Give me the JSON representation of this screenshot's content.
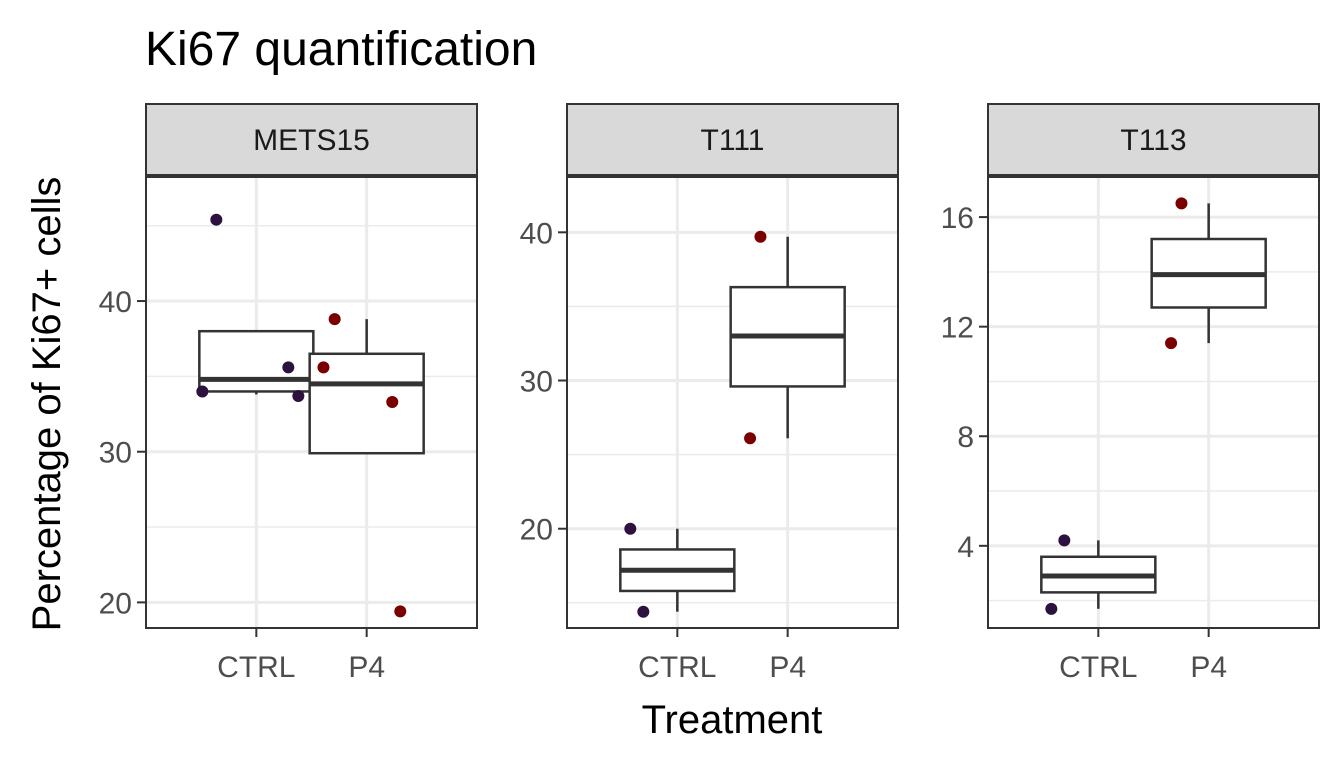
{
  "chart_data": {
    "type": "box",
    "title": "Ki67 quantification",
    "xlabel": "Treatment",
    "ylabel": "Percentage of Ki67+ cells",
    "categories": [
      "CTRL",
      "P4"
    ],
    "facets": [
      {
        "name": "METS15",
        "ylim": [
          18.3,
          48.3
        ],
        "yticks": [
          20,
          30,
          40
        ],
        "boxes": [
          {
            "group": "CTRL",
            "min": 33.8,
            "q1": 34.0,
            "median": 34.8,
            "q3": 38.0,
            "max": 38.0
          },
          {
            "group": "P4",
            "min": 29.9,
            "q1": 29.9,
            "median": 34.5,
            "q3": 36.5,
            "max": 38.8
          }
        ],
        "points": [
          {
            "group": "CTRL",
            "y": 45.4
          },
          {
            "group": "CTRL",
            "y": 34.0
          },
          {
            "group": "CTRL",
            "y": 35.6
          },
          {
            "group": "CTRL",
            "y": 33.7
          },
          {
            "group": "P4",
            "y": 38.8
          },
          {
            "group": "P4",
            "y": 35.6
          },
          {
            "group": "P4",
            "y": 33.3
          },
          {
            "group": "P4",
            "y": 19.4
          }
        ]
      },
      {
        "name": "T111",
        "ylim": [
          13.3,
          43.8
        ],
        "yticks": [
          20,
          30,
          40
        ],
        "boxes": [
          {
            "group": "CTRL",
            "min": 14.4,
            "q1": 15.8,
            "median": 17.2,
            "q3": 18.6,
            "max": 20.0
          },
          {
            "group": "P4",
            "min": 26.1,
            "q1": 29.6,
            "median": 33.0,
            "q3": 36.3,
            "max": 39.7
          }
        ],
        "points": [
          {
            "group": "CTRL",
            "y": 14.4
          },
          {
            "group": "CTRL",
            "y": 20.0
          },
          {
            "group": "P4",
            "y": 39.7
          },
          {
            "group": "P4",
            "y": 26.1
          }
        ]
      },
      {
        "name": "T113",
        "ylim": [
          1.0,
          17.5
        ],
        "yticks": [
          4,
          8,
          12,
          16
        ],
        "boxes": [
          {
            "group": "CTRL",
            "min": 1.7,
            "q1": 2.3,
            "median": 2.9,
            "q3": 3.6,
            "max": 4.2
          },
          {
            "group": "P4",
            "min": 11.4,
            "q1": 12.7,
            "median": 13.9,
            "q3": 15.2,
            "max": 16.5
          }
        ],
        "points": [
          {
            "group": "CTRL",
            "y": 4.2
          },
          {
            "group": "CTRL",
            "y": 1.7
          },
          {
            "group": "P4",
            "y": 16.5
          },
          {
            "group": "P4",
            "y": 11.4
          }
        ]
      }
    ],
    "colors": {
      "CTRL": "#2d1240",
      "P4": "#7a0000",
      "strip_bg": "#d9d9d9",
      "strip_line": "#333333",
      "grid": "#ebebeb",
      "box_line": "#333333",
      "panel_border": "#333333"
    },
    "grid": true,
    "legend": "none"
  }
}
